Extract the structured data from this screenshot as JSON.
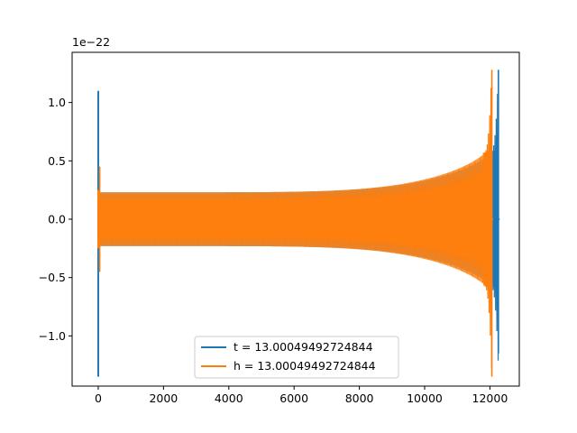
{
  "chart_data": {
    "type": "line",
    "title": "",
    "xlabel": "",
    "ylabel": "",
    "y_offset_label": "1e−22",
    "xlim": [
      -800,
      12900
    ],
    "ylim": [
      -1.43,
      1.43
    ],
    "x_ticks": [
      0,
      2000,
      4000,
      6000,
      8000,
      10000,
      12000
    ],
    "x_tick_labels": [
      "0",
      "2000",
      "4000",
      "6000",
      "8000",
      "10000",
      "12000"
    ],
    "y_ticks": [
      -1.0,
      -0.5,
      0.0,
      0.5,
      1.0
    ],
    "y_tick_labels": [
      "−1.0",
      "−0.5",
      "0.0",
      "0.5",
      "1.0"
    ],
    "grid": false,
    "legend_position": "lower-center",
    "series": [
      {
        "name": "t = 13.00049492724844",
        "color": "#1f77b4",
        "x_start": 0,
        "x_end": 12260,
        "startup_spike": [
          -1.35,
          1.1
        ],
        "envelope_start": 0.23,
        "envelope_end": 0.57,
        "merger_peak": [
          -1.15,
          1.28
        ],
        "ringdown_after": 12300
      },
      {
        "name": "h = 13.00049492724844",
        "color": "#ff7f0e",
        "x_start": 0,
        "x_end": 12060,
        "startup_spike": [
          -0.25,
          0.25
        ],
        "envelope_start": 0.23,
        "envelope_end": 0.57,
        "merger_peak": [
          -1.35,
          1.28
        ],
        "ringdown_after": 12100
      }
    ]
  }
}
